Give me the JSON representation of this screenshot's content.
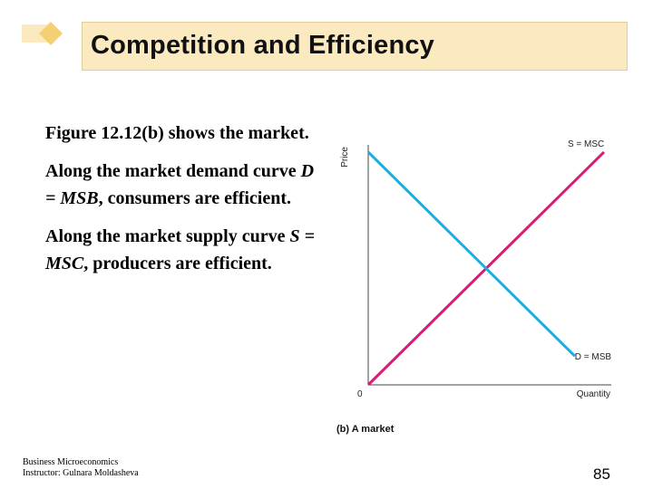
{
  "slide": {
    "title": "Competition and Efficiency",
    "paragraphs": [
      {
        "parts": [
          {
            "text": "Figure 12.12(b) shows the market.",
            "italic": false
          }
        ]
      },
      {
        "parts": [
          {
            "text": "Along the market demand curve ",
            "italic": false
          },
          {
            "text": "D = MSB",
            "italic": true
          },
          {
            "text": ", consumers are efficient.",
            "italic": false
          }
        ]
      },
      {
        "parts": [
          {
            "text": "Along the market supply curve ",
            "italic": false
          },
          {
            "text": "S = MSC",
            "italic": true
          },
          {
            "text": ", producers are efficient.",
            "italic": false
          }
        ]
      }
    ],
    "footer": {
      "line1": "Business Microeconomics",
      "line2": "Instructor: Gulnara Moldasheva"
    },
    "page_number": "85"
  },
  "chart_data": {
    "type": "line",
    "title": "(b) A market",
    "xlabel": "Quantity",
    "ylabel": "Price",
    "origin_label": "0",
    "xlim": [
      0,
      100
    ],
    "ylim": [
      0,
      100
    ],
    "grid": false,
    "series": [
      {
        "name": "S = MSC",
        "color": "#d81b74",
        "x": [
          0,
          97
        ],
        "y": [
          0,
          97
        ]
      },
      {
        "name": "D = MSB",
        "color": "#1aaee0",
        "x": [
          0,
          85
        ],
        "y": [
          97,
          12
        ]
      }
    ]
  },
  "colors": {
    "title_bg": "#fbeac0",
    "logo_light": "#fbeac0",
    "logo_dark": "#f5cf74"
  }
}
